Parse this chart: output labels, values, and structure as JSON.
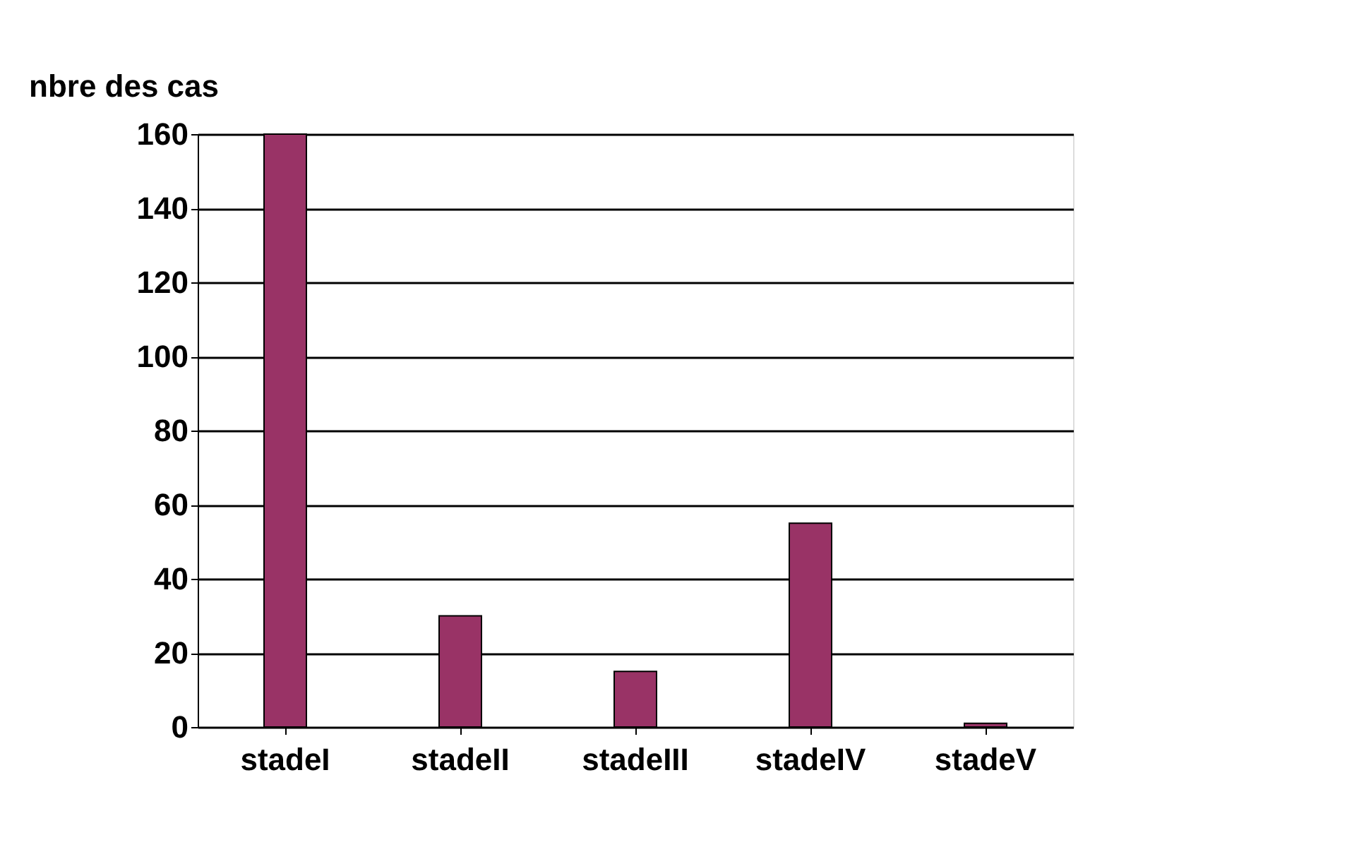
{
  "chart_data": {
    "type": "bar",
    "ylabel": "nbre des cas",
    "categories": [
      "stadeI",
      "stadeII",
      "stadeIII",
      "stadeIV",
      "stadeV"
    ],
    "values": [
      160,
      30,
      15,
      55,
      1
    ],
    "color": "#993366",
    "ylim": [
      0,
      160
    ],
    "yticks": [
      0,
      20,
      40,
      60,
      80,
      100,
      120,
      140,
      160
    ],
    "grid": "y"
  }
}
